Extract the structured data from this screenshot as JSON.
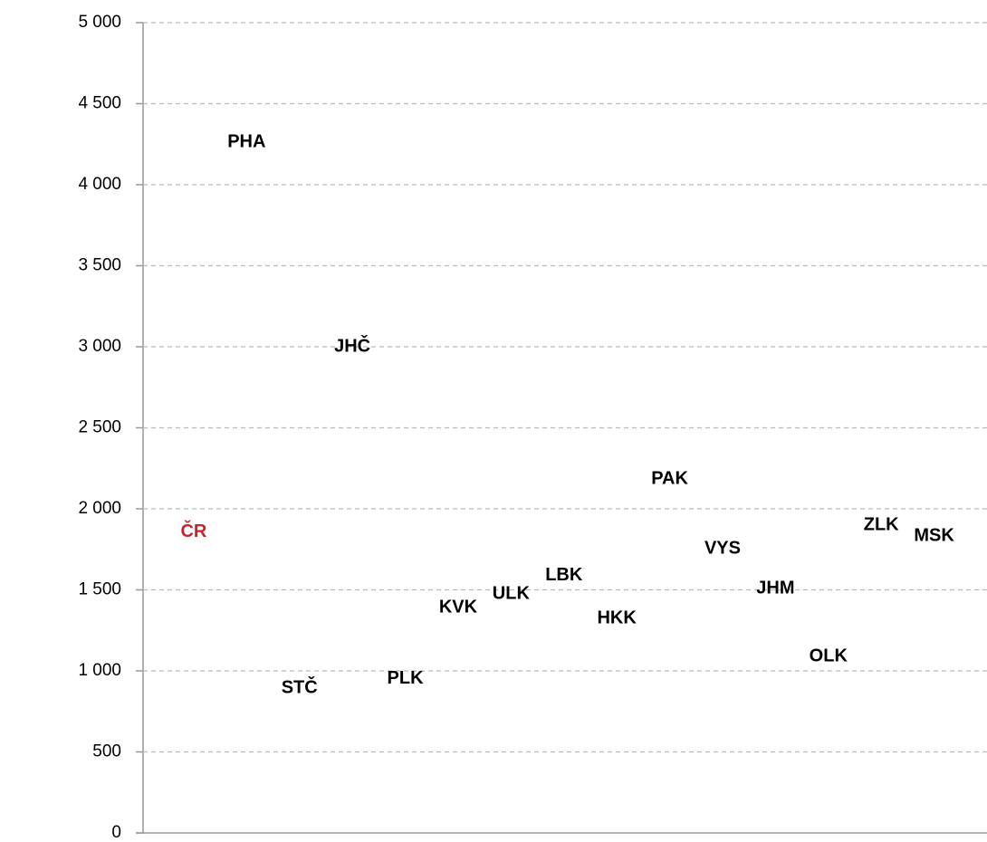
{
  "chart_data": {
    "type": "scatter",
    "categories": [
      "ČR",
      "PHA",
      "STČ",
      "JHČ",
      "PLK",
      "KVK",
      "ULK",
      "LBK",
      "HKK",
      "PAK",
      "VYS",
      "JHM",
      "OLK",
      "ZLK",
      "MSK"
    ],
    "values": [
      1855,
      4260,
      894,
      3000,
      950,
      1391,
      1475,
      1587,
      1324,
      2184,
      1754,
      1508,
      1089,
      1899,
      1832
    ],
    "colors": [
      "#c0282d",
      "#000000",
      "#000000",
      "#000000",
      "#000000",
      "#000000",
      "#000000",
      "#000000",
      "#000000",
      "#000000",
      "#000000",
      "#000000",
      "#000000",
      "#000000",
      "#000000"
    ],
    "ylim": [
      0,
      5000
    ],
    "yticks": [
      0,
      500,
      {
        "value": 1000,
        "label": "1 000"
      },
      {
        "value": 1500,
        "label": "1 500"
      },
      {
        "value": 2000,
        "label": "2 000"
      },
      {
        "value": 2500,
        "label": "2 500"
      },
      {
        "value": 3000,
        "label": "3 000"
      },
      {
        "value": 3500,
        "label": "3 500"
      },
      {
        "value": 4000,
        "label": "4 000"
      },
      {
        "value": 4500,
        "label": "4 500"
      },
      {
        "value": 5000,
        "label": "5 000"
      }
    ],
    "grid": true
  }
}
